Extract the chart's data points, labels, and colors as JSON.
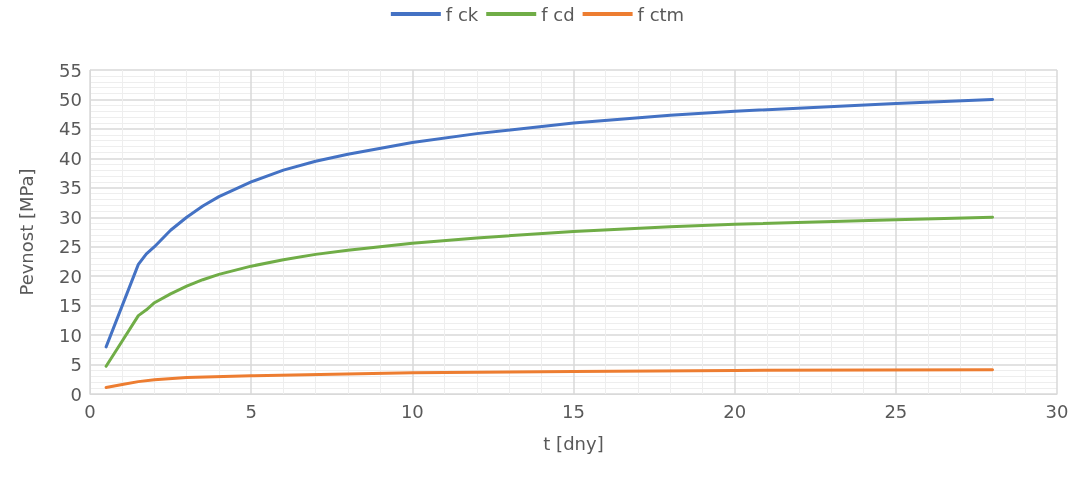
{
  "chart_data": {
    "type": "line",
    "xlabel": "t [dny]",
    "ylabel": "Pevnost [MPa]",
    "xlim": [
      0,
      30
    ],
    "xticks": [
      0,
      5,
      10,
      15,
      20,
      25,
      30
    ],
    "ylim": [
      0,
      55
    ],
    "yticks": [
      0,
      5,
      10,
      15,
      20,
      25,
      30,
      35,
      40,
      45,
      50,
      55
    ],
    "grid": true,
    "legend": "top",
    "marker": "none",
    "line_style": "solid",
    "series": [
      {
        "name": "f ck",
        "color": "#4472c4",
        "x": [
          0.5,
          1,
          1.5,
          1.75,
          2,
          2.5,
          3,
          3.5,
          4,
          5,
          6,
          7,
          8,
          10,
          12,
          15,
          18,
          20,
          25,
          28
        ],
        "values": [
          8,
          15,
          22,
          23.8,
          25,
          27.8,
          30,
          31.9,
          33.5,
          36,
          38,
          39.5,
          40.7,
          42.7,
          44.2,
          46,
          47.3,
          48,
          49.3,
          50
        ]
      },
      {
        "name": "f cd",
        "color": "#70ad47",
        "x": [
          0.5,
          1,
          1.5,
          1.75,
          2,
          2.5,
          3,
          3.5,
          4,
          5,
          6,
          7,
          8,
          10,
          12,
          15,
          18,
          20,
          25,
          28
        ],
        "values": [
          4.7,
          9,
          13.3,
          14.3,
          15.5,
          17,
          18.3,
          19.4,
          20.3,
          21.7,
          22.8,
          23.7,
          24.4,
          25.6,
          26.5,
          27.6,
          28.4,
          28.8,
          29.6,
          30
        ]
      },
      {
        "name": "f ctm",
        "color": "#ed7d31",
        "x": [
          0.5,
          1,
          1.5,
          2,
          3,
          5,
          10,
          15,
          20,
          28
        ],
        "values": [
          1.1,
          1.6,
          2.1,
          2.4,
          2.8,
          3.1,
          3.6,
          3.8,
          4,
          4.1
        ]
      }
    ]
  }
}
